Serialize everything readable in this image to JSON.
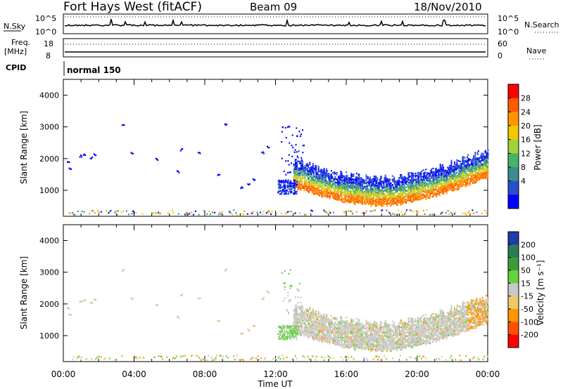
{
  "header": {
    "station": "Fort Hays West (fitACF)",
    "beam": "Beam 09",
    "date": "18/Nov/2010"
  },
  "top_panels": {
    "nsky_label": "N.Sky",
    "nsearch_label": "N.Search",
    "nsky_ticks": [
      "10^5",
      "10^0"
    ],
    "nsearch_ticks": [
      "10^5",
      "10^0"
    ],
    "freq_label": "Freq.",
    "freq_unit": "[MHz]",
    "freq_ticks": [
      "18",
      "8"
    ],
    "nave_label": "Nave",
    "nave_ticks": [
      "60",
      "0"
    ],
    "cpid_label": "CPID",
    "cpid_value": "normal 150"
  },
  "chart_data": [
    {
      "type": "heatmap",
      "name": "power",
      "ylabel": "Slant Range [km]",
      "ylim": [
        180,
        4500
      ],
      "yticks": [
        1000,
        2000,
        3000,
        4000
      ],
      "xticks": [
        "00:00",
        "04:00",
        "08:00",
        "12:00",
        "16:00",
        "20:00",
        "00:00"
      ],
      "colorbar": {
        "label": "Power [dB]",
        "ticks": [
          "28",
          "24",
          "20",
          "16",
          "12",
          "8",
          "4"
        ],
        "colors": [
          "#ff0000",
          "#ff5a00",
          "#ff9600",
          "#f0c800",
          "#a0d23c",
          "#46b464",
          "#3c8c8c",
          "#2850c8",
          "#0000ff"
        ]
      },
      "features": [
        {
          "desc": "main band",
          "start_hour": 13.0,
          "end_hour": 24.0,
          "range_min_km": 700,
          "range_max_km": 1700
        }
      ]
    },
    {
      "type": "heatmap",
      "name": "velocity",
      "ylabel": "Slant Range [km]",
      "ylim": [
        180,
        4500
      ],
      "yticks": [
        1000,
        2000,
        3000,
        4000
      ],
      "xticks": [
        "00:00",
        "04:00",
        "08:00",
        "12:00",
        "16:00",
        "20:00",
        "00:00"
      ],
      "xlabel": "Time UT",
      "colorbar": {
        "label": "Velocity [m s⁻¹]",
        "ticks": [
          "200",
          "100",
          "50",
          "15",
          "-15",
          "-50",
          "-100",
          "-200"
        ],
        "colors": [
          "#1e3caa",
          "#2d7a5a",
          "#3c9c3c",
          "#64d23c",
          "#c8c8c8",
          "#f0c864",
          "#ff9600",
          "#ff5000",
          "#ff0000"
        ]
      }
    }
  ],
  "colors": {
    "ground_scatter": "#c8c8c8",
    "frame": "#000000"
  }
}
